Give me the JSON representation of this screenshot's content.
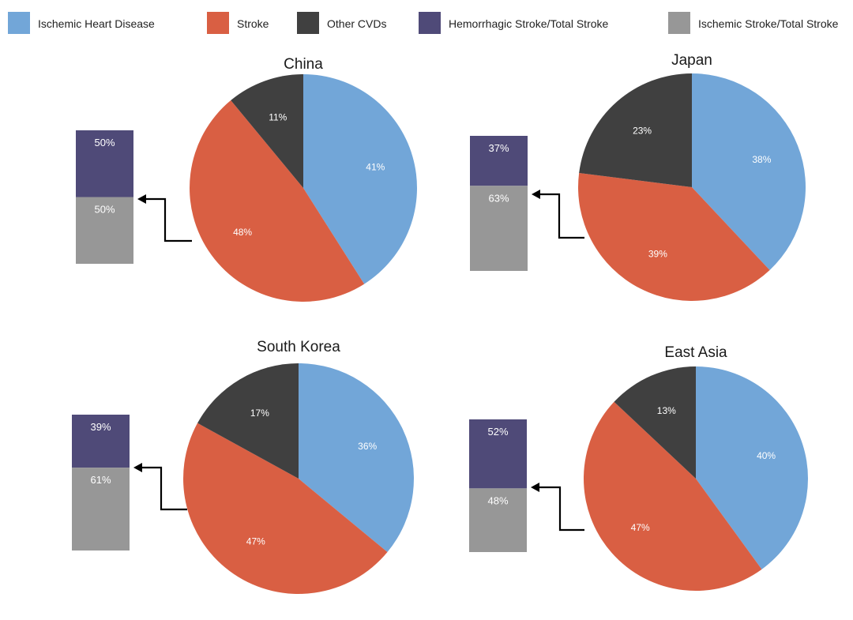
{
  "colors": {
    "ischemic_heart_disease": "#72a6d8",
    "stroke": "#d95f43",
    "other_cvds": "#404040",
    "hemorrhagic_stroke": "#4f4a78",
    "ischemic_stroke": "#979797"
  },
  "legend": [
    {
      "label": "Ischemic Heart Disease",
      "color": "#72a6d8"
    },
    {
      "label": "Stroke",
      "color": "#d95f43"
    },
    {
      "label": "Other CVDs",
      "color": "#404040"
    },
    {
      "label": "Hemorrhagic Stroke/Total Stroke",
      "color": "#4f4a78"
    },
    {
      "label": "Ischemic Stroke/Total Stroke",
      "color": "#979797"
    }
  ],
  "chart_data": [
    {
      "type": "pie",
      "title": "China",
      "categories": [
        "Ischemic Heart Disease",
        "Stroke",
        "Other CVDs"
      ],
      "values": [
        41,
        48,
        11
      ],
      "labels": [
        "41%",
        "48%",
        "11%"
      ],
      "stroke_breakdown": {
        "type": "bar",
        "categories": [
          "Hemorrhagic Stroke/Total Stroke",
          "Ischemic Stroke/Total Stroke"
        ],
        "values": [
          50,
          50
        ],
        "labels": [
          "50%",
          "50%"
        ]
      }
    },
    {
      "type": "pie",
      "title": "Japan",
      "categories": [
        "Ischemic Heart Disease",
        "Stroke",
        "Other CVDs"
      ],
      "values": [
        38,
        39,
        23
      ],
      "labels": [
        "38%",
        "39%",
        "23%"
      ],
      "stroke_breakdown": {
        "type": "bar",
        "categories": [
          "Hemorrhagic Stroke/Total Stroke",
          "Ischemic Stroke/Total Stroke"
        ],
        "values": [
          37,
          63
        ],
        "labels": [
          "37%",
          "63%"
        ]
      }
    },
    {
      "type": "pie",
      "title": "South Korea",
      "categories": [
        "Ischemic Heart Disease",
        "Stroke",
        "Other CVDs"
      ],
      "values": [
        36,
        47,
        17
      ],
      "labels": [
        "36%",
        "47%",
        "17%"
      ],
      "stroke_breakdown": {
        "type": "bar",
        "categories": [
          "Hemorrhagic Stroke/Total Stroke",
          "Ischemic Stroke/Total Stroke"
        ],
        "values": [
          39,
          61
        ],
        "labels": [
          "39%",
          "61%"
        ]
      }
    },
    {
      "type": "pie",
      "title": "East Asia",
      "categories": [
        "Ischemic Heart Disease",
        "Stroke",
        "Other CVDs"
      ],
      "values": [
        40,
        47,
        13
      ],
      "labels": [
        "40%",
        "47%",
        "13%"
      ],
      "stroke_breakdown": {
        "type": "bar",
        "categories": [
          "Hemorrhagic Stroke/Total Stroke",
          "Ischemic Stroke/Total Stroke"
        ],
        "values": [
          52,
          48
        ],
        "labels": [
          "52%",
          "48%"
        ]
      }
    }
  ]
}
